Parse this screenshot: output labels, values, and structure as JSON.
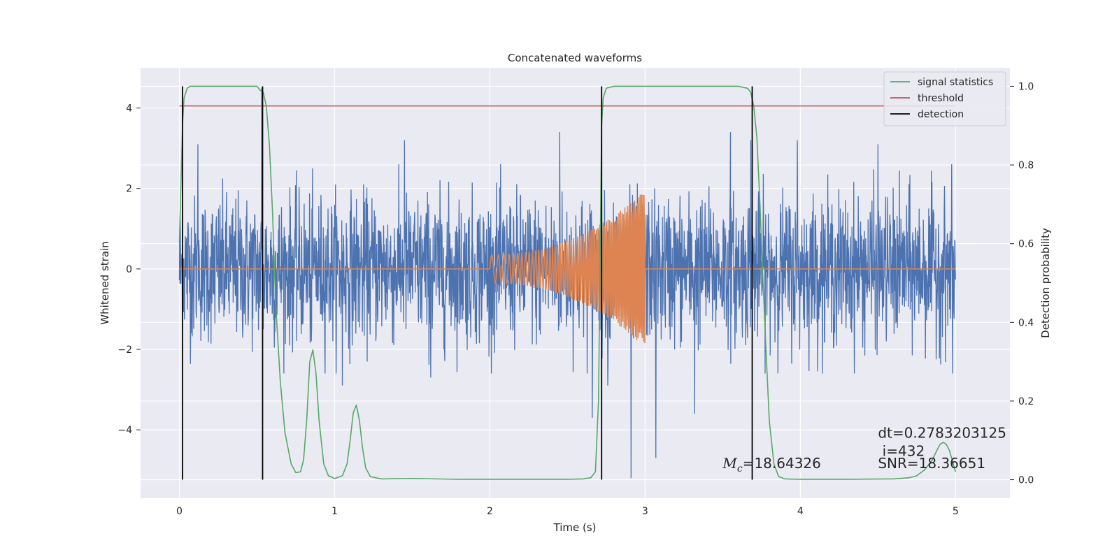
{
  "chart_data": {
    "type": "line",
    "title": "Concatenated waveforms",
    "xlabel": "Time (s)",
    "ylabel": "Whitened strain",
    "y2label": "Detection probability",
    "xlim": [
      -0.25,
      5.35
    ],
    "ylim": [
      -5.7,
      5.0
    ],
    "y2lim": [
      -0.047,
      1.047
    ],
    "xticks": [
      0,
      1,
      2,
      3,
      4,
      5
    ],
    "yticks": [
      -4,
      -2,
      0,
      2,
      4
    ],
    "y2ticks": [
      0.0,
      0.2,
      0.4,
      0.6,
      0.8,
      1.0
    ],
    "grid": true,
    "legend_position": "top-right",
    "colors": {
      "noise": "#4c72b0",
      "template": "#dd8452",
      "signal_statistics": "#55a868",
      "threshold": "#c44e52",
      "detection": "#000000",
      "background": "#eaeaf2",
      "grid": "#ffffff"
    },
    "series": [
      {
        "name": "",
        "axis": "left",
        "kind": "noise",
        "x_range": [
          0,
          5
        ],
        "std": 0.9,
        "outliers": [
          {
            "x": 0.02,
            "y": -1.5
          },
          {
            "x": 0.12,
            "y": 3.1
          },
          {
            "x": 0.53,
            "y": 4.5
          },
          {
            "x": 0.54,
            "y": -1.5
          },
          {
            "x": 0.85,
            "y": -1.8
          },
          {
            "x": 1.05,
            "y": -2.9
          },
          {
            "x": 1.45,
            "y": 3.2
          },
          {
            "x": 1.62,
            "y": -2.7
          },
          {
            "x": 2.45,
            "y": 3.4
          },
          {
            "x": 2.66,
            "y": -3.7
          },
          {
            "x": 2.72,
            "y": 3.2
          },
          {
            "x": 2.76,
            "y": -2.9
          },
          {
            "x": 2.91,
            "y": -5.2
          },
          {
            "x": 3.07,
            "y": -4.7
          },
          {
            "x": 3.32,
            "y": -3.6
          },
          {
            "x": 3.55,
            "y": 3.4
          },
          {
            "x": 3.68,
            "y": 3.2
          },
          {
            "x": 3.98,
            "y": 3.2
          },
          {
            "x": 4.5,
            "y": 3.1
          },
          {
            "x": 4.98,
            "y": -2.6
          }
        ]
      },
      {
        "name": "",
        "axis": "left",
        "kind": "chirp",
        "start": 2.0,
        "end": 3.0,
        "amp_start": 0.35,
        "amp_end": 1.95,
        "f_start": 20,
        "f_end": 120
      },
      {
        "name": "signal statistics",
        "axis": "right",
        "x": [
          0.0,
          0.01,
          0.02,
          0.03,
          0.05,
          0.07,
          0.1,
          0.2,
          0.4,
          0.5,
          0.52,
          0.54,
          0.56,
          0.58,
          0.6,
          0.62,
          0.65,
          0.68,
          0.72,
          0.75,
          0.78,
          0.8,
          0.82,
          0.84,
          0.86,
          0.88,
          0.9,
          0.93,
          0.96,
          1.0,
          1.05,
          1.08,
          1.1,
          1.12,
          1.14,
          1.16,
          1.18,
          1.2,
          1.23,
          1.3,
          1.5,
          1.8,
          2.0,
          2.3,
          2.5,
          2.6,
          2.65,
          2.68,
          2.7,
          2.71,
          2.72,
          2.73,
          2.75,
          2.8,
          3.0,
          3.3,
          3.6,
          3.66,
          3.68,
          3.7,
          3.72,
          3.74,
          3.76,
          3.78,
          3.8,
          3.83,
          3.86,
          3.9,
          4.0,
          4.3,
          4.6,
          4.7,
          4.75,
          4.8,
          4.85,
          4.88,
          4.9,
          4.92,
          4.94,
          4.96,
          5.0
        ],
        "y": [
          0.6,
          0.75,
          0.9,
          0.97,
          0.995,
          1.0,
          1.0,
          1.0,
          1.0,
          1.0,
          0.99,
          0.985,
          0.95,
          0.85,
          0.68,
          0.45,
          0.25,
          0.12,
          0.04,
          0.018,
          0.02,
          0.05,
          0.15,
          0.3,
          0.33,
          0.27,
          0.15,
          0.04,
          0.01,
          0.003,
          0.01,
          0.04,
          0.1,
          0.17,
          0.19,
          0.15,
          0.08,
          0.03,
          0.008,
          0.002,
          0.003,
          0.001,
          0.001,
          0.001,
          0.001,
          0.002,
          0.005,
          0.02,
          0.2,
          0.55,
          0.9,
          0.97,
          0.995,
          1.0,
          1.0,
          1.0,
          1.0,
          0.995,
          0.985,
          0.95,
          0.87,
          0.7,
          0.5,
          0.32,
          0.15,
          0.04,
          0.008,
          0.002,
          0.001,
          0.001,
          0.002,
          0.005,
          0.01,
          0.025,
          0.05,
          0.075,
          0.09,
          0.095,
          0.09,
          0.075,
          0.02
        ]
      },
      {
        "name": "threshold",
        "axis": "right",
        "x": [
          0.0,
          5.0
        ],
        "y": [
          0.95,
          0.95
        ]
      },
      {
        "name": "detection",
        "axis": "right",
        "kind": "vlines",
        "x": [
          0.02,
          0.536,
          2.72,
          3.69
        ],
        "ymin": 0.0,
        "ymax": 1.0
      }
    ],
    "annotations": [
      {
        "id": "mc",
        "prefix": "M",
        "subscript": "c",
        "text": "=18.64326",
        "x": 3.5,
        "y": -4.95
      },
      {
        "id": "dt",
        "text": "dt=0.2783203125",
        "x": 4.5,
        "y": -4.2
      },
      {
        "id": "index",
        "text": " i=432",
        "x": 4.5,
        "y": -4.65
      },
      {
        "id": "snr",
        "text": "SNR=18.36651",
        "x": 4.5,
        "y": -4.95
      }
    ]
  }
}
